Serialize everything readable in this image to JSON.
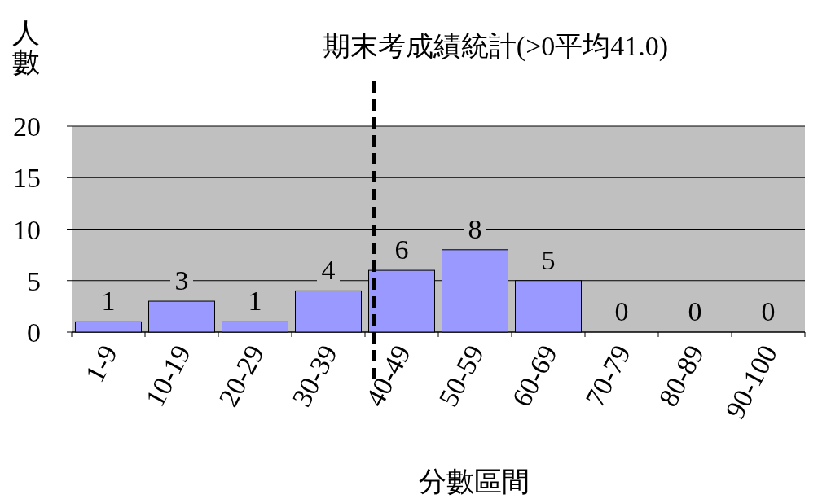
{
  "chart_data": {
    "type": "bar",
    "title": "期末考成績統計(>0平均41.0)",
    "xlabel": "分數區間",
    "ylabel": "人數",
    "categories": [
      "1-9",
      "10-19",
      "20-29",
      "30-39",
      "40-49",
      "50-59",
      "60-69",
      "70-79",
      "80-89",
      "90-100"
    ],
    "values": [
      1,
      3,
      1,
      4,
      6,
      8,
      5,
      0,
      0,
      0
    ],
    "color": "#9999ff",
    "ylim": [
      0,
      20
    ],
    "yticks": [
      0,
      5,
      10,
      15,
      20
    ],
    "grid": "y",
    "data_labels": true,
    "ref_lines": [
      {
        "axis": "x",
        "value": "40-49",
        "color": "#000000",
        "line_style": "dashed"
      }
    ]
  }
}
